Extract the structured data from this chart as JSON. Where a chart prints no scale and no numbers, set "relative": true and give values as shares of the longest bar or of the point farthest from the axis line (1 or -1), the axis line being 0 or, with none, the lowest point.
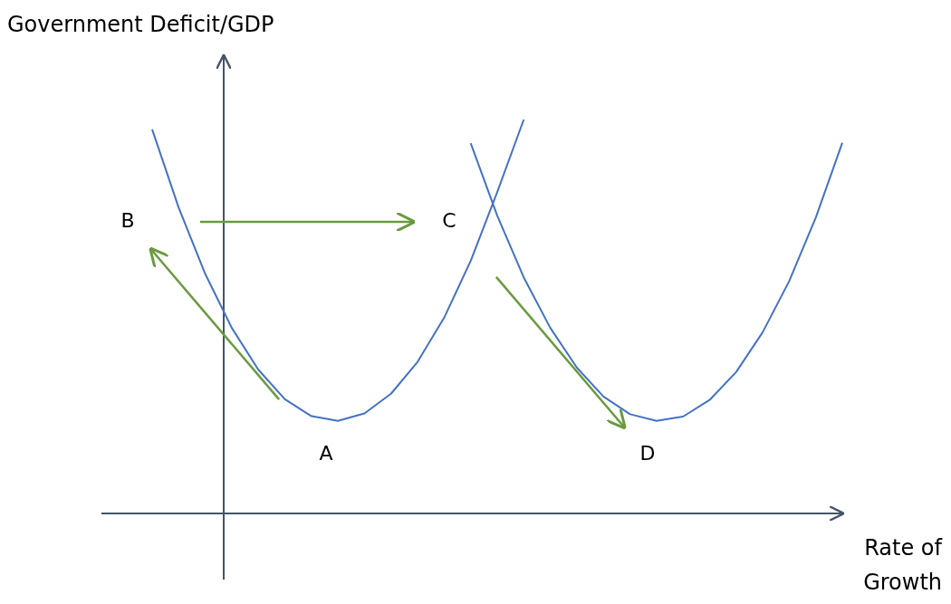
{
  "chart_data": {
    "type": "line",
    "relative": true,
    "ylabel": "Government Deficit/GDP",
    "xlabel": "Rate of Growth",
    "categories": [
      null,
      null,
      null,
      null,
      null,
      null,
      null,
      null,
      null,
      null,
      null,
      null,
      null,
      null,
      null,
      null,
      null,
      null,
      null,
      null,
      null,
      null,
      null,
      null,
      null,
      null,
      null
    ],
    "series": [
      {
        "color": "#4472c4",
        "values": [
          0.975,
          0.776,
          0.608,
          0.471,
          0.365,
          0.29,
          0.247,
          0.235,
          0.254,
          0.304,
          0.385,
          0.497,
          0.641,
          0.816,
          1,
          null,
          null,
          null,
          null,
          null,
          null,
          null,
          null,
          null,
          null,
          null,
          null
        ]
      },
      {
        "color": "#4472c4",
        "values": [
          null,
          null,
          null,
          null,
          null,
          null,
          null,
          null,
          null,
          null,
          null,
          null,
          0.94,
          0.756,
          0.599,
          0.471,
          0.37,
          0.297,
          0.252,
          0.235,
          0.246,
          0.288,
          0.359,
          0.46,
          0.59,
          0.751,
          0.941
        ]
      }
    ],
    "annotations": [
      "A",
      "B",
      "C",
      "D"
    ]
  }
}
